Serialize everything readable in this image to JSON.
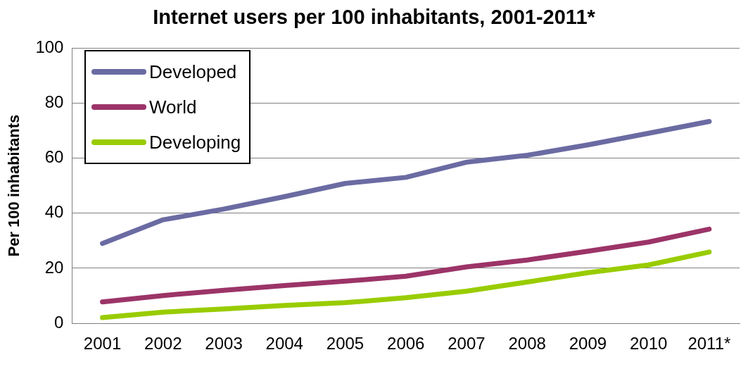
{
  "chart_data": {
    "type": "line",
    "title": "Internet users per 100 inhabitants, 2001-2011*",
    "ylabel": "Per 100 inhabitants",
    "categories": [
      "2001",
      "2002",
      "2003",
      "2004",
      "2005",
      "2006",
      "2007",
      "2008",
      "2009",
      "2010",
      "2011*"
    ],
    "series": [
      {
        "name": "Developed",
        "color": "#6b6ba3",
        "values": [
          29,
          37.6,
          41.5,
          46,
          50.8,
          53,
          58.5,
          61,
          64.8,
          69,
          73.3
        ]
      },
      {
        "name": "World",
        "color": "#9c3468",
        "values": [
          7.8,
          10.1,
          12,
          13.7,
          15.3,
          17.1,
          20.5,
          23,
          26.2,
          29.5,
          34.2
        ]
      },
      {
        "name": "Developing",
        "color": "#99cc00",
        "values": [
          2.1,
          4.1,
          5.2,
          6.5,
          7.5,
          9.3,
          11.7,
          15,
          18.4,
          21.2,
          25.9
        ]
      }
    ],
    "ylim": [
      0,
      100
    ],
    "yticks": [
      0,
      20,
      40,
      60,
      80,
      100
    ],
    "grid": "y",
    "legend": "top left",
    "marker": "none",
    "line_style": "solid"
  }
}
